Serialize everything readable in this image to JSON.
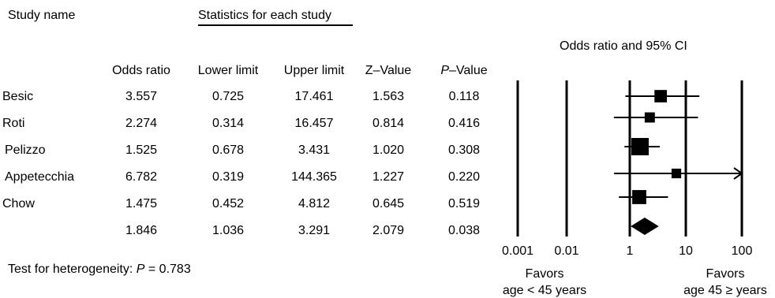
{
  "headers": {
    "study_name": "Study name",
    "stats_group": "Statistics for each study",
    "odds_ratio": "Odds ratio",
    "lower_limit": "Lower limit",
    "upper_limit": "Upper limit",
    "z_value": "Z–Value",
    "p_value_italic": "P",
    "p_value_rest": "–Value",
    "plot_title": "Odds ratio and 95% CI"
  },
  "rows": [
    {
      "study": "Besic",
      "or": "3.557",
      "ll": "0.725",
      "ul": "17.461",
      "z": "1.563",
      "p": "0.118"
    },
    {
      "study": "Roti",
      "or": "2.274",
      "ll": "0.314",
      "ul": "16.457",
      "z": "0.814",
      "p": "0.416"
    },
    {
      "study": "Pelizzo",
      "or": "1.525",
      "ll": "0.678",
      "ul": "3.431",
      "z": "1.020",
      "p": "0.308"
    },
    {
      "study": "Appetecchia",
      "or": "6.782",
      "ll": "0.319",
      "ul": "144.365",
      "z": "1.227",
      "p": "0.220"
    },
    {
      "study": "Chow",
      "or": "1.475",
      "ll": "0.452",
      "ul": "4.812",
      "z": "0.645",
      "p": "0.519"
    },
    {
      "study": "",
      "or": "1.846",
      "ll": "1.036",
      "ul": "3.291",
      "z": "2.079",
      "p": "0.038"
    }
  ],
  "heterogeneity": {
    "label": "Test for heterogeneity: ",
    "p_symbol": "P",
    "value": " = 0.783"
  },
  "favors": {
    "left_line1": "Favors",
    "left_line2": "age < 45 years",
    "right_line1": "Favors",
    "right_line2": "age 45 ≥ years"
  },
  "chart_data": {
    "type": "forest",
    "title": "Odds ratio and 95% CI",
    "xscale": "log",
    "xlim": [
      0.001,
      100
    ],
    "xticks": [
      "0.001",
      "0.01",
      "1",
      "10",
      "100"
    ],
    "xtick_values": [
      0.001,
      0.01,
      1,
      10,
      100
    ],
    "studies": [
      {
        "name": "Besic",
        "or": 3.557,
        "lower": 0.725,
        "upper": 17.461,
        "weight": 0.55
      },
      {
        "name": "Roti",
        "or": 2.274,
        "lower": 0.314,
        "upper": 16.457,
        "weight": 0.35
      },
      {
        "name": "Pelizzo",
        "or": 1.525,
        "lower": 0.678,
        "upper": 3.431,
        "weight": 1.0
      },
      {
        "name": "Appetecchia",
        "or": 6.782,
        "lower": 0.319,
        "upper": 144.365,
        "weight": 0.3
      },
      {
        "name": "Chow",
        "or": 1.475,
        "lower": 0.452,
        "upper": 4.812,
        "weight": 0.7
      }
    ],
    "summary": {
      "or": 1.846,
      "lower": 1.036,
      "upper": 3.291
    }
  }
}
